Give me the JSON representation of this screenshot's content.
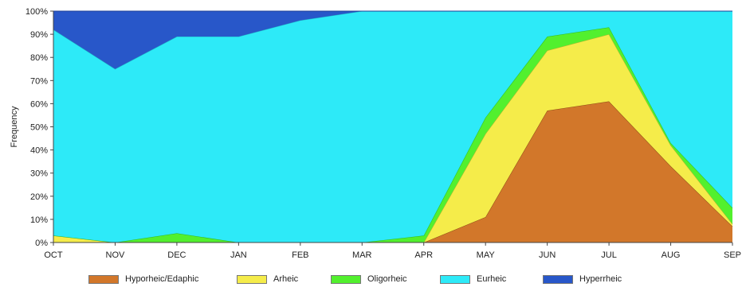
{
  "chart_data": {
    "type": "area",
    "stacked": true,
    "xlabel": "",
    "ylabel": "Frequency",
    "categories": [
      "OCT",
      "NOV",
      "DEC",
      "JAN",
      "FEB",
      "MAR",
      "APR",
      "MAY",
      "JUN",
      "JUL",
      "AUG",
      "SEP"
    ],
    "ylim": [
      0,
      100
    ],
    "yticks": [
      "0%",
      "10%",
      "20%",
      "30%",
      "40%",
      "50%",
      "60%",
      "70%",
      "80%",
      "90%",
      "100%"
    ],
    "grid": false,
    "legend_position": "bottom",
    "series": [
      {
        "name": "Hyporheic/Edaphic",
        "color": "#D2772A",
        "values": [
          0,
          0,
          0,
          0,
          0,
          0,
          0,
          11,
          57,
          61,
          33,
          7
        ]
      },
      {
        "name": "Arheic",
        "color": "#F5EC4A",
        "values": [
          3,
          0,
          0,
          0,
          0,
          0,
          0,
          36,
          26,
          29,
          9,
          1
        ]
      },
      {
        "name": "Oligorheic",
        "color": "#52F02E",
        "values": [
          0,
          0,
          4,
          0,
          0,
          0,
          3,
          7,
          6,
          3,
          1,
          7
        ]
      },
      {
        "name": "Eurheic",
        "color": "#2DEAF8",
        "values": [
          89,
          75,
          85,
          89,
          96,
          100,
          97,
          46,
          11,
          7,
          57,
          85
        ]
      },
      {
        "name": "Hyperrheic",
        "color": "#2857C9",
        "values": [
          8,
          25,
          11,
          11,
          4,
          0,
          0,
          0,
          0,
          0,
          0,
          0
        ]
      }
    ]
  }
}
